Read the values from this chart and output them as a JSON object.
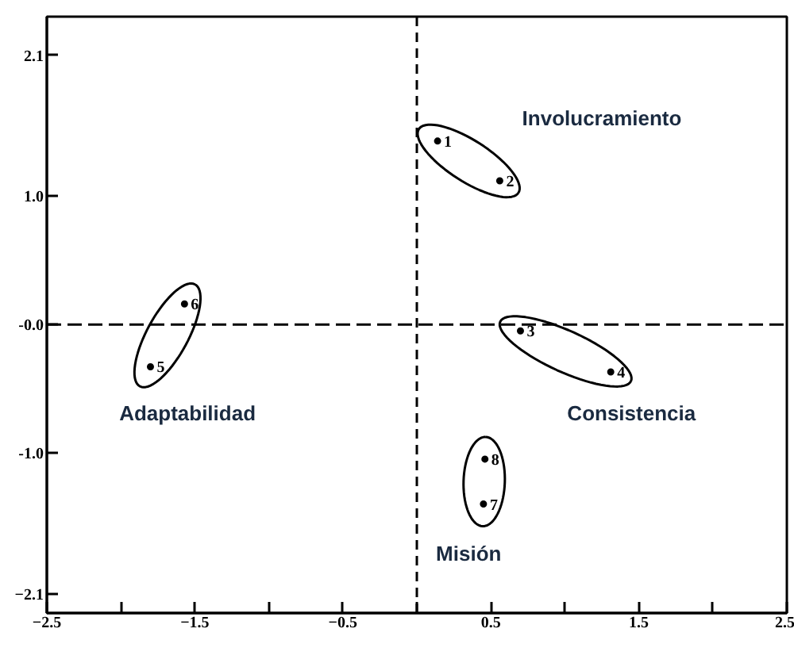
{
  "chart_data": {
    "type": "scatter",
    "series": [
      {
        "name": "1",
        "color": "#000000",
        "x": [
          0.14
        ],
        "values": [
          1.43
        ]
      },
      {
        "name": "2",
        "color": "#000000",
        "x": [
          0.56
        ],
        "values": [
          1.12
        ]
      },
      {
        "name": "3",
        "color": "#000000",
        "x": [
          0.7
        ],
        "values": [
          -0.05
        ]
      },
      {
        "name": "4",
        "color": "#000000",
        "x": [
          1.31
        ],
        "values": [
          -0.37
        ]
      },
      {
        "name": "5",
        "color": "#000000",
        "x": [
          -1.8
        ],
        "values": [
          -0.33
        ]
      },
      {
        "name": "6",
        "color": "#000000",
        "x": [
          -1.57
        ],
        "values": [
          0.16
        ]
      },
      {
        "name": "7",
        "color": "#000000",
        "x": [
          0.45
        ],
        "values": [
          -1.4
        ]
      },
      {
        "name": "8",
        "color": "#000000",
        "x": [
          0.46
        ],
        "values": [
          -1.05
        ]
      }
    ],
    "marker": "circle",
    "xlim": [
      -2.5,
      2.5
    ],
    "xticks": [
      -2.5,
      {
        "value": -2,
        "label": null
      },
      -1.5,
      {
        "value": -1,
        "label": null
      },
      -0.5,
      {
        "value": 0,
        "label": null
      },
      0.5,
      {
        "value": 1,
        "label": null
      },
      1.5,
      {
        "value": 2,
        "label": null
      },
      2.5
    ],
    "ylim": [
      -2.25,
      2.4
    ],
    "yticks": [
      2.1,
      {
        "value": 1,
        "label": "1.0"
      },
      {
        "value": 0,
        "label": "-0.0"
      },
      {
        "value": -1,
        "label": "-1.0"
      },
      -2.1
    ],
    "ref_lines": [
      {
        "axis": "x",
        "value": 0,
        "line_style": "dashed"
      },
      {
        "axis": "y",
        "value": 0,
        "line_style": "dashed"
      }
    ],
    "annotations": [
      "Involucramiento",
      "Consistencia",
      "Adaptabilidad",
      "Misión"
    ],
    "grid": false
  }
}
